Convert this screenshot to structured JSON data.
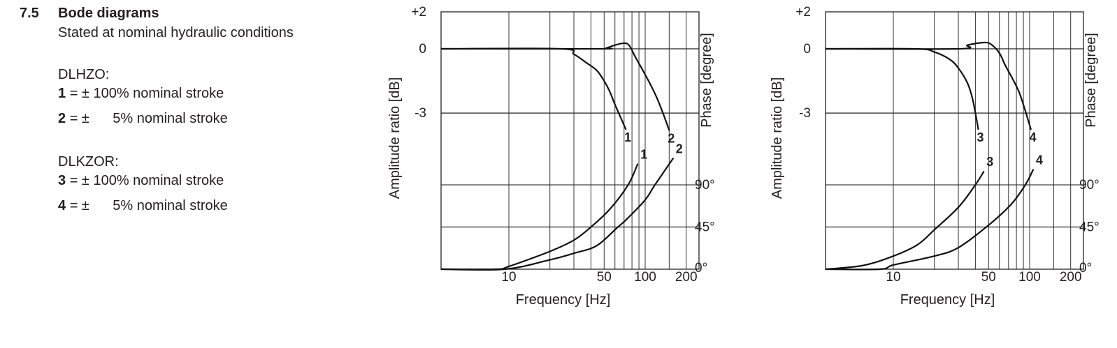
{
  "section": {
    "number": "7.5",
    "title": "Bode diagrams",
    "subtitle": "Stated at nominal hydraulic conditions"
  },
  "legend": [
    {
      "group": "DLHZO:",
      "items": [
        {
          "id": "1",
          "text": "= ± 100% nominal stroke"
        },
        {
          "id": "2",
          "text": "= ±      5% nominal stroke"
        }
      ]
    },
    {
      "group": "DLKZOR:",
      "items": [
        {
          "id": "3",
          "text": "= ± 100% nominal stroke"
        },
        {
          "id": "4",
          "text": "= ±      5% nominal stroke"
        }
      ]
    }
  ],
  "chart_data": [
    {
      "type": "line",
      "xlabel": "Frequency [Hz]",
      "ylabel_left": "Amplitude ratio  [dB]",
      "ylabel_right": "Phase [degree]",
      "x_scale": "log",
      "xlim": [
        3.2,
        250
      ],
      "x_ticks": [
        "10",
        "50",
        "100",
        "200"
      ],
      "x_tick_values": [
        10,
        50,
        100,
        200
      ],
      "x_grid": [
        10,
        20,
        30,
        40,
        50,
        60,
        70,
        80,
        90,
        100,
        150,
        200
      ],
      "amplitude_ticks": [
        "+2",
        "0",
        "-3"
      ],
      "amplitude_tick_values": [
        2,
        0,
        -3
      ],
      "phase_ticks": [
        "90°",
        "45°",
        "0°"
      ],
      "phase_tick_values": [
        90,
        45,
        0
      ],
      "grid": true,
      "line_color": "#111111",
      "series": [
        {
          "name": "1",
          "kind": "amplitude",
          "points": [
            [
              3.2,
              0
            ],
            [
              24,
              0
            ],
            [
              30,
              -0.25
            ],
            [
              37,
              -0.65
            ],
            [
              44,
              -1.0
            ],
            [
              50,
              -1.5
            ],
            [
              55,
              -2.0
            ],
            [
              60,
              -2.6
            ],
            [
              66,
              -3.2
            ],
            [
              72,
              -3.75
            ]
          ]
        },
        {
          "name": "2",
          "kind": "amplitude",
          "points": [
            [
              3.2,
              0
            ],
            [
              45,
              0
            ],
            [
              52,
              0.05
            ],
            [
              60,
              0.2
            ],
            [
              69,
              0.3
            ],
            [
              76,
              0.2
            ],
            [
              85,
              -0.4
            ],
            [
              96,
              -1.0
            ],
            [
              110,
              -1.7
            ],
            [
              122,
              -2.3
            ],
            [
              135,
              -3.0
            ],
            [
              150,
              -3.8
            ]
          ]
        },
        {
          "name": "1",
          "kind": "phase",
          "points": [
            [
              3.2,
              0
            ],
            [
              8,
              0
            ],
            [
              10,
              3
            ],
            [
              20,
              19
            ],
            [
              30,
              31
            ],
            [
              40,
              45
            ],
            [
              55,
              64
            ],
            [
              75,
              90
            ],
            [
              88,
              112
            ]
          ]
        },
        {
          "name": "2",
          "kind": "phase",
          "points": [
            [
              3.2,
              0
            ],
            [
              9.3,
              0
            ],
            [
              20,
              10
            ],
            [
              30,
              17
            ],
            [
              44,
              25
            ],
            [
              62,
              44
            ],
            [
              74,
              54
            ],
            [
              100,
              74
            ],
            [
              118,
              90
            ],
            [
              160,
              118
            ]
          ]
        }
      ]
    },
    {
      "type": "line",
      "xlabel": "Frequency [Hz]",
      "ylabel_left": "Amplitude ratio [dB]",
      "ylabel_right": "Phase [degree]",
      "x_scale": "log",
      "xlim": [
        3.2,
        250
      ],
      "x_ticks": [
        "10",
        "50",
        "100",
        "200"
      ],
      "x_tick_values": [
        10,
        50,
        100,
        200
      ],
      "x_grid": [
        10,
        20,
        30,
        40,
        50,
        60,
        70,
        80,
        90,
        100,
        150,
        200
      ],
      "amplitude_ticks": [
        "+2",
        "0",
        "-3"
      ],
      "amplitude_tick_values": [
        2,
        0,
        -3
      ],
      "phase_ticks": [
        "90°",
        "45°",
        "0°"
      ],
      "phase_tick_values": [
        90,
        45,
        0
      ],
      "grid": true,
      "line_color": "#111111",
      "series": [
        {
          "name": "3",
          "kind": "amplitude",
          "points": [
            [
              3.2,
              0
            ],
            [
              14.6,
              0
            ],
            [
              20,
              -0.15
            ],
            [
              26,
              -0.5
            ],
            [
              30,
              -0.9
            ],
            [
              35,
              -1.6
            ],
            [
              38,
              -2.3
            ],
            [
              40,
              -3.0
            ],
            [
              42,
              -3.75
            ]
          ]
        },
        {
          "name": "4",
          "kind": "amplitude",
          "points": [
            [
              3.2,
              0
            ],
            [
              30,
              0
            ],
            [
              35,
              0.2
            ],
            [
              46,
              0.34
            ],
            [
              52,
              0.25
            ],
            [
              60,
              -0.2
            ],
            [
              66,
              -0.75
            ],
            [
              75,
              -1.4
            ],
            [
              84,
              -2.05
            ],
            [
              93,
              -2.9
            ],
            [
              102,
              -3.75
            ]
          ]
        },
        {
          "name": "3",
          "kind": "phase",
          "points": [
            [
              3.2,
              0
            ],
            [
              6,
              4
            ],
            [
              10,
              14
            ],
            [
              15,
              26
            ],
            [
              20,
              42
            ],
            [
              30,
              66
            ],
            [
              40,
              90
            ],
            [
              46,
              104
            ]
          ]
        },
        {
          "name": "4",
          "kind": "phase",
          "points": [
            [
              3.2,
              0
            ],
            [
              8,
              0
            ],
            [
              10,
              4.5
            ],
            [
              20,
              14
            ],
            [
              30,
              23
            ],
            [
              50,
              47
            ],
            [
              73,
              69
            ],
            [
              93,
              90
            ],
            [
              106,
              106
            ]
          ]
        }
      ]
    }
  ]
}
